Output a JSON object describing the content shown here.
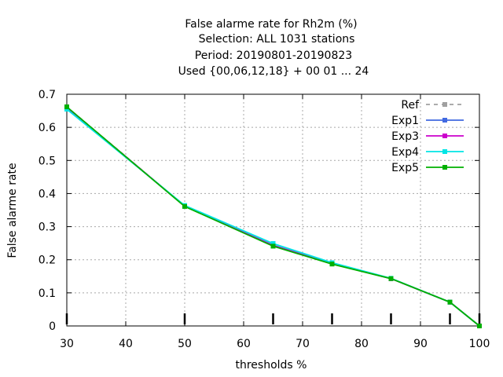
{
  "chart_data": {
    "type": "line",
    "title_lines": [
      "False alarme rate  for Rh2m (%)",
      "Selection: ALL    1031 stations",
      "Period: 20190801-20190823",
      "Used {00,06,12,18} + 00 01 ... 24"
    ],
    "xlabel": "thresholds %",
    "ylabel": "False alarme rate",
    "xlim": [
      30,
      100
    ],
    "ylim": [
      0,
      0.7
    ],
    "x_ticks": [
      30,
      40,
      50,
      60,
      70,
      80,
      90,
      100
    ],
    "y_ticks": [
      "0",
      "0.1",
      "0.2",
      "0.3",
      "0.4",
      "0.5",
      "0.6",
      "0.7"
    ],
    "grid": true,
    "legend_position": "top-right",
    "x": [
      30,
      50,
      65,
      75,
      85,
      95,
      100
    ],
    "series": [
      {
        "name": "Ref",
        "color": "#a0a0a0",
        "dashed": true,
        "values": [
          0.662,
          0.362,
          0.242,
          0.188,
          0.143,
          0.072,
          0.0
        ]
      },
      {
        "name": "Exp1",
        "color": "#4169e1",
        "dashed": false,
        "values": [
          0.66,
          0.362,
          0.244,
          0.188,
          0.143,
          0.072,
          0.0
        ]
      },
      {
        "name": "Exp3",
        "color": "#cc00cc",
        "dashed": false,
        "values": [
          0.661,
          0.362,
          0.243,
          0.189,
          0.143,
          0.072,
          0.0
        ]
      },
      {
        "name": "Exp4",
        "color": "#00e5e5",
        "dashed": false,
        "values": [
          0.655,
          0.364,
          0.249,
          0.191,
          0.144,
          0.072,
          0.0
        ]
      },
      {
        "name": "Exp5",
        "color": "#00b000",
        "dashed": false,
        "values": [
          0.662,
          0.361,
          0.241,
          0.187,
          0.143,
          0.072,
          0.0
        ]
      }
    ]
  }
}
